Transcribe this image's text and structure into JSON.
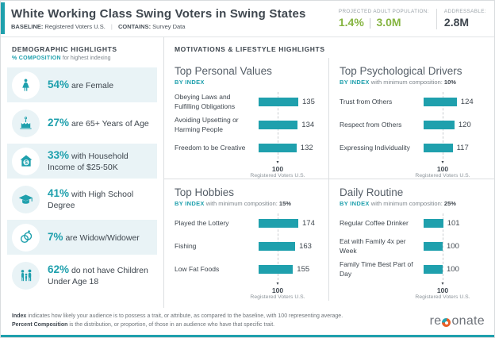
{
  "colors": {
    "teal": "#1fa0ad",
    "green": "#85b440",
    "dark": "#3f474f",
    "row_bg": "#e9f3f6"
  },
  "header": {
    "title": "White Working Class Swing Voters in Swing States",
    "baseline_label": "BASELINE:",
    "baseline_value": "Registered Voters U.S.",
    "contains_label": "CONTAINS:",
    "contains_value": "Survey Data",
    "projected_label": "PROJECTED ADULT POPULATION:",
    "projected_pct": "1.4%",
    "projected_pop": "3.0M",
    "addressable_label": "ADDRESSABLE:",
    "addressable_value": "2.8M"
  },
  "demographics": {
    "title": "DEMOGRAPHIC HIGHLIGHTS",
    "subtitle_prefix": "% COMPOSITION",
    "subtitle_rest": "for highest indexing",
    "items": [
      {
        "icon": "female",
        "pct": "54%",
        "text": "are Female"
      },
      {
        "icon": "birthday-cake",
        "pct": "27%",
        "text": "are 65+ Years of Age"
      },
      {
        "icon": "house-income",
        "pct": "33%",
        "text": "with Household Income of $25-50K"
      },
      {
        "icon": "graduation-cap",
        "pct": "41%",
        "text": "with High School Degree"
      },
      {
        "icon": "wedding-rings",
        "pct": "7%",
        "text": "are Widow/Widower"
      },
      {
        "icon": "family",
        "pct": "62%",
        "text": "do not have Children Under Age 18"
      }
    ]
  },
  "motivations_header": "MOTIVATIONS & LIFESTYLE HIGHLIGHTS",
  "chart_data": [
    {
      "type": "bar",
      "title": "Top Personal Values",
      "subtitle_prefix": "BY INDEX",
      "subtitle_mid": "",
      "min_composition": "",
      "categories": [
        "Obeying Laws and Fulfilling Obligations",
        "Avoiding Upsetting or Harming People",
        "Freedom to be Creative"
      ],
      "values": [
        135,
        134,
        132
      ],
      "baseline": 100,
      "baseline_tick": "100",
      "baseline_label": "Registered Voters U.S."
    },
    {
      "type": "bar",
      "title": "Top Psychological Drivers",
      "subtitle_prefix": "BY INDEX",
      "subtitle_mid": "with minimum composition:",
      "min_composition": "10%",
      "categories": [
        "Trust from Others",
        "Respect from Others",
        "Expressing Individuality"
      ],
      "values": [
        124,
        120,
        117
      ],
      "baseline": 100,
      "baseline_tick": "100",
      "baseline_label": "Registered Voters U.S."
    },
    {
      "type": "bar",
      "title": "Top Hobbies",
      "subtitle_prefix": "BY INDEX",
      "subtitle_mid": "with minimum composition:",
      "min_composition": "15%",
      "categories": [
        "Played the Lottery",
        "Fishing",
        "Low Fat Foods"
      ],
      "values": [
        174,
        163,
        155
      ],
      "baseline": 100,
      "baseline_tick": "100",
      "baseline_label": "Registered Voters U.S."
    },
    {
      "type": "bar",
      "title": "Daily Routine",
      "subtitle_prefix": "BY INDEX",
      "subtitle_mid": "with minimum composition:",
      "min_composition": "25%",
      "categories": [
        "Regular Coffee Drinker",
        "Eat with Family 4x per Week",
        "Family Time Best Part of Day"
      ],
      "values": [
        101,
        100,
        100
      ],
      "baseline": 100,
      "baseline_tick": "100",
      "baseline_label": "Registered Voters U.S."
    }
  ],
  "footer": {
    "note1_bold": "Index",
    "note1_rest": "indicates how likely your audience is to possess a trait, or attribute, as compared to the baseline, with 100 representing average.",
    "note2_bold": "Percent Composition",
    "note2_rest": "is the distribution, or proportion, of those in an audience who have that specific trait.",
    "logo_pre": "re",
    "logo_post": "onate"
  }
}
